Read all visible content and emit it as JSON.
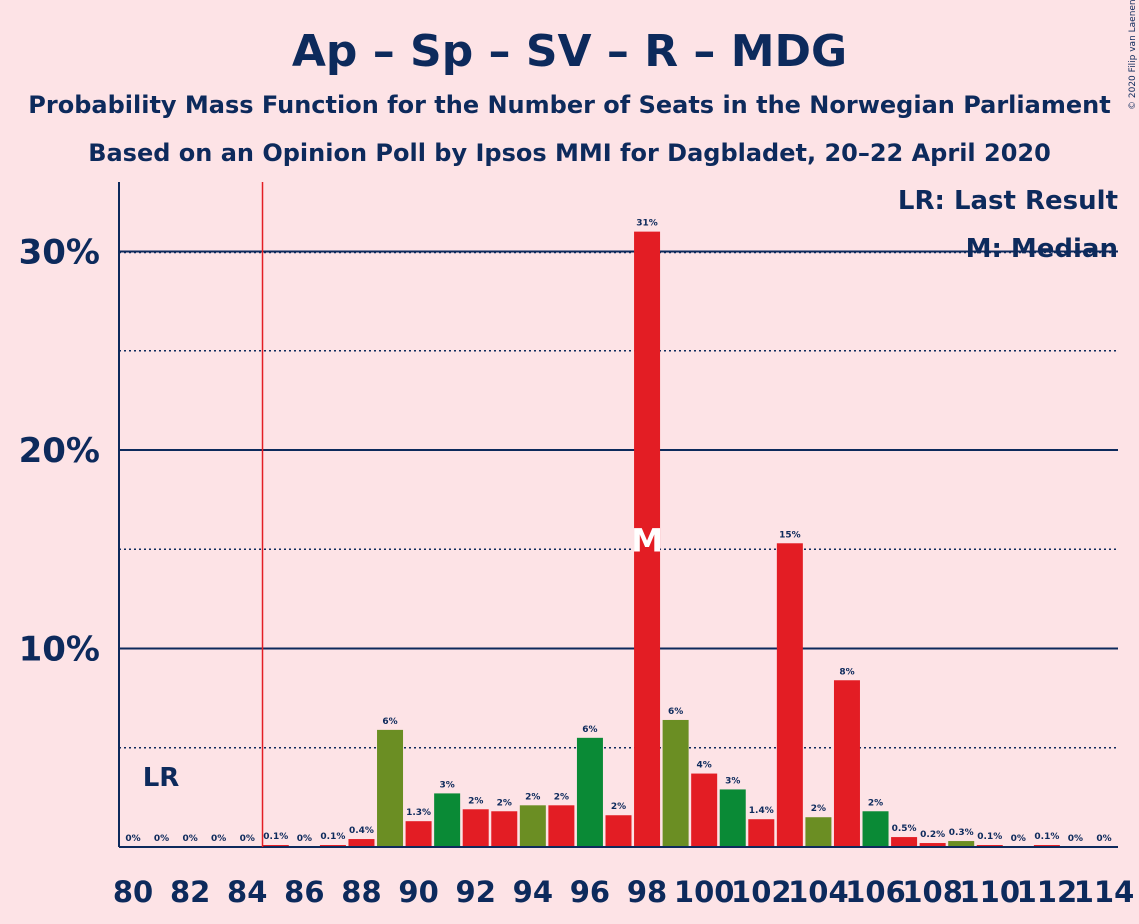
{
  "title": "Ap – Sp – SV – R – MDG",
  "subtitle1": "Probability Mass Function for the Number of Seats in the Norwegian Parliament",
  "subtitle2": "Based on an Opinion Poll by Ipsos MMI for Dagbladet, 20–22 April 2020",
  "copyright": "© 2020 Filip van Laenen",
  "legend": {
    "lr": "LR: Last Result",
    "m": "M: Median"
  },
  "lr_label": "LR",
  "median_label": "M",
  "colors": {
    "red": "#e31d24",
    "green": "#0a8a36",
    "olive": "#6b8e23",
    "navy": "#0d2a5c",
    "background": "#fde3e6"
  },
  "chart_data": {
    "type": "bar",
    "x": [
      80,
      81,
      82,
      83,
      84,
      85,
      86,
      87,
      88,
      89,
      90,
      91,
      92,
      93,
      94,
      95,
      96,
      97,
      98,
      99,
      100,
      101,
      102,
      103,
      104,
      105,
      106,
      107,
      108,
      109,
      110,
      111,
      112,
      113,
      114
    ],
    "values": [
      0,
      0,
      0,
      0,
      0,
      0.1,
      0,
      0.1,
      0.4,
      5.9,
      1.3,
      2.7,
      1.9,
      1.8,
      2.1,
      2.1,
      5.5,
      1.6,
      31,
      6.4,
      3.7,
      2.9,
      1.4,
      15.3,
      1.5,
      8.4,
      1.8,
      0.5,
      0.2,
      0.3,
      0.1,
      0,
      0.1,
      0,
      0
    ],
    "labels": [
      "0%",
      "0%",
      "0%",
      "0%",
      "0%",
      "0.1%",
      "0%",
      "0.1%",
      "0.4%",
      "6%",
      "1.3%",
      "3%",
      "2%",
      "2%",
      "2%",
      "2%",
      "6%",
      "2%",
      "31%",
      "6%",
      "4%",
      "3%",
      "1.4%",
      "15%",
      "2%",
      "8%",
      "2%",
      "0.5%",
      "0.2%",
      "0.3%",
      "0.1%",
      "0%",
      "0.1%",
      "0%",
      "0%"
    ],
    "colors": [
      "red",
      "green",
      "olive",
      "red",
      "olive",
      "red",
      "red",
      "red",
      "red",
      "olive",
      "red",
      "green",
      "red",
      "red",
      "olive",
      "red",
      "green",
      "red",
      "red",
      "olive",
      "red",
      "green",
      "red",
      "red",
      "olive",
      "red",
      "green",
      "red",
      "red",
      "olive",
      "red",
      "green",
      "red",
      "red",
      "olive"
    ],
    "x_tick_labels": [
      "80",
      "82",
      "84",
      "86",
      "88",
      "90",
      "92",
      "94",
      "96",
      "98",
      "100",
      "102",
      "104",
      "106",
      "108",
      "110",
      "112",
      "114"
    ],
    "y_tick_labels": [
      "10%",
      "20%",
      "30%"
    ],
    "y_ticks": [
      10,
      20,
      30
    ],
    "ylim": [
      0,
      33.5
    ],
    "last_result": 85,
    "median": 98
  }
}
